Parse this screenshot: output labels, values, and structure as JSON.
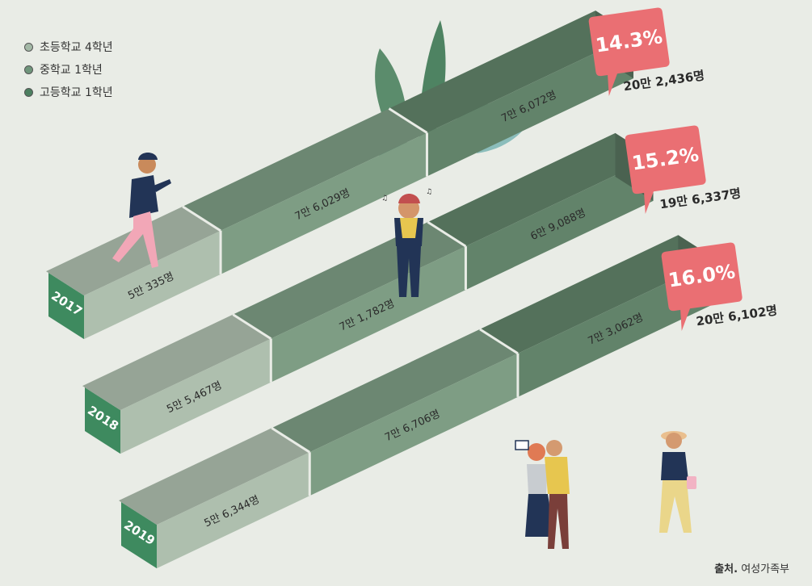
{
  "legend": [
    {
      "label": "초등학교 4학년",
      "color": "#a3b8a6"
    },
    {
      "label": "중학교 1학년",
      "color": "#6f957b"
    },
    {
      "label": "고등학교 1학년",
      "color": "#4c7f60"
    }
  ],
  "source": {
    "label": "출처.",
    "value": "여성가족부"
  },
  "colors": {
    "elementary": "#aebfae",
    "middle": "#7e9d84",
    "high": "#62836a",
    "year_tag": "#3e8a5f",
    "callout": "#ea6f73"
  },
  "chart_data": {
    "type": "bar",
    "orientation": "horizontal-stacked-isometric",
    "categories": [
      "2017",
      "2018",
      "2019"
    ],
    "series": [
      {
        "name": "초등학교 4학년",
        "values": [
          50335,
          55467,
          56344
        ],
        "labels": [
          "5만 335명",
          "5만 5,467명",
          "5만 6,344명"
        ]
      },
      {
        "name": "중학교 1학년",
        "values": [
          76029,
          71782,
          76706
        ],
        "labels": [
          "7만 6,029명",
          "7만 1,782명",
          "7만 6,706명"
        ]
      },
      {
        "name": "고등학교 1학년",
        "values": [
          76072,
          69088,
          73062
        ],
        "labels": [
          "7만 6,072명",
          "6만 9,088명",
          "7만 3,062명"
        ]
      }
    ],
    "callouts": [
      {
        "percent": "14.3%",
        "total": "20만 2,436명"
      },
      {
        "percent": "15.2%",
        "total": "19만 6,337명"
      },
      {
        "percent": "16.0%",
        "total": "20만 6,102명"
      }
    ]
  }
}
